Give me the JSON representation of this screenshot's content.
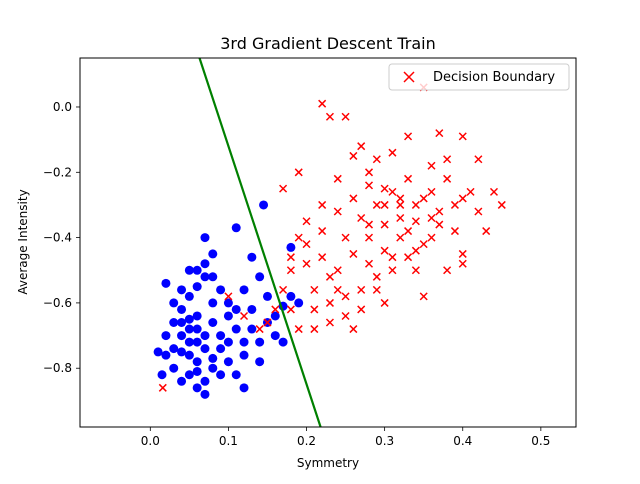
{
  "chart_data": {
    "type": "scatter",
    "title": "3rd Gradient Descent Train",
    "xlabel": "Symmetry",
    "ylabel": "Average Intensity",
    "xlim": [
      -0.09,
      0.545
    ],
    "ylim": [
      -0.98,
      0.15
    ],
    "x_ticks": [
      0.0,
      0.1,
      0.2,
      0.3,
      0.4,
      0.5
    ],
    "x_tick_labels": [
      "0.0",
      "0.1",
      "0.2",
      "0.3",
      "0.4",
      "0.5"
    ],
    "y_ticks": [
      -0.8,
      -0.6,
      -0.4,
      -0.2,
      0.0
    ],
    "y_tick_labels": [
      "−0.8",
      "−0.6",
      "−0.4",
      "−0.2",
      "0.0"
    ],
    "grid": false,
    "legend": {
      "placement": "top-right",
      "entries": [
        {
          "label": "Decision Boundary",
          "marker": "x",
          "color": "#ff0000"
        }
      ]
    },
    "boundary_line": {
      "color": "#008000",
      "points": [
        [
          0.063,
          0.15
        ],
        [
          0.218,
          -0.98
        ]
      ]
    },
    "series": [
      {
        "marker": "circle",
        "color": "#0000ff",
        "points": [
          [
            0.03,
            -0.6
          ],
          [
            0.04,
            -0.62
          ],
          [
            0.05,
            -0.65
          ],
          [
            0.06,
            -0.68
          ],
          [
            0.07,
            -0.7
          ],
          [
            0.05,
            -0.72
          ],
          [
            0.04,
            -0.75
          ],
          [
            0.06,
            -0.78
          ],
          [
            0.08,
            -0.66
          ],
          [
            0.09,
            -0.7
          ],
          [
            0.03,
            -0.8
          ],
          [
            0.02,
            -0.76
          ],
          [
            0.05,
            -0.58
          ],
          [
            0.06,
            -0.55
          ],
          [
            0.07,
            -0.52
          ],
          [
            0.08,
            -0.6
          ],
          [
            0.1,
            -0.64
          ],
          [
            0.11,
            -0.68
          ],
          [
            0.12,
            -0.72
          ],
          [
            0.04,
            -0.84
          ],
          [
            0.06,
            -0.86
          ],
          [
            0.07,
            -0.88
          ],
          [
            0.09,
            -0.82
          ],
          [
            0.1,
            -0.78
          ],
          [
            0.02,
            -0.7
          ],
          [
            0.03,
            -0.66
          ],
          [
            0.05,
            -0.5
          ],
          [
            0.07,
            -0.48
          ],
          [
            0.08,
            -0.45
          ],
          [
            0.11,
            -0.37
          ],
          [
            0.07,
            -0.4
          ],
          [
            0.13,
            -0.46
          ],
          [
            0.14,
            -0.52
          ],
          [
            0.15,
            -0.58
          ],
          [
            0.13,
            -0.62
          ],
          [
            0.15,
            -0.66
          ],
          [
            0.16,
            -0.7
          ],
          [
            0.17,
            -0.72
          ],
          [
            0.12,
            -0.76
          ],
          [
            0.14,
            -0.78
          ],
          [
            0.11,
            -0.82
          ],
          [
            0.12,
            -0.86
          ],
          [
            0.17,
            -0.61
          ],
          [
            0.18,
            -0.58
          ],
          [
            0.19,
            -0.6
          ],
          [
            0.145,
            -0.3
          ],
          [
            0.18,
            -0.43
          ],
          [
            0.02,
            -0.54
          ],
          [
            0.01,
            -0.75
          ],
          [
            0.015,
            -0.82
          ],
          [
            0.04,
            -0.7
          ],
          [
            0.05,
            -0.76
          ],
          [
            0.06,
            -0.64
          ],
          [
            0.07,
            -0.74
          ],
          [
            0.08,
            -0.8
          ],
          [
            0.09,
            -0.74
          ],
          [
            0.04,
            -0.66
          ],
          [
            0.05,
            -0.68
          ],
          [
            0.06,
            -0.72
          ],
          [
            0.03,
            -0.74
          ],
          [
            0.1,
            -0.6
          ],
          [
            0.09,
            -0.56
          ],
          [
            0.08,
            -0.52
          ],
          [
            0.06,
            -0.5
          ],
          [
            0.04,
            -0.56
          ],
          [
            0.12,
            -0.56
          ],
          [
            0.13,
            -0.68
          ],
          [
            0.1,
            -0.72
          ],
          [
            0.14,
            -0.72
          ],
          [
            0.11,
            -0.62
          ],
          [
            0.16,
            -0.64
          ],
          [
            0.05,
            -0.82
          ],
          [
            0.07,
            -0.84
          ],
          [
            0.08,
            -0.77
          ],
          [
            0.06,
            -0.81
          ]
        ]
      },
      {
        "marker": "x",
        "color": "#ff0000",
        "points": [
          [
            0.22,
            0.01
          ],
          [
            0.23,
            -0.03
          ],
          [
            0.25,
            -0.03
          ],
          [
            0.35,
            0.06
          ],
          [
            0.37,
            -0.08
          ],
          [
            0.4,
            -0.09
          ],
          [
            0.33,
            -0.09
          ],
          [
            0.42,
            -0.16
          ],
          [
            0.44,
            -0.26
          ],
          [
            0.45,
            -0.3
          ],
          [
            0.43,
            -0.38
          ],
          [
            0.4,
            -0.45
          ],
          [
            0.38,
            -0.5
          ],
          [
            0.36,
            -0.4
          ],
          [
            0.34,
            -0.35
          ],
          [
            0.32,
            -0.3
          ],
          [
            0.3,
            -0.25
          ],
          [
            0.28,
            -0.2
          ],
          [
            0.26,
            -0.15
          ],
          [
            0.24,
            -0.22
          ],
          [
            0.22,
            -0.3
          ],
          [
            0.2,
            -0.35
          ],
          [
            0.19,
            -0.4
          ],
          [
            0.18,
            -0.5
          ],
          [
            0.17,
            -0.56
          ],
          [
            0.16,
            -0.62
          ],
          [
            0.15,
            -0.66
          ],
          [
            0.14,
            -0.68
          ],
          [
            0.12,
            -0.64
          ],
          [
            0.1,
            -0.58
          ],
          [
            0.21,
            -0.56
          ],
          [
            0.23,
            -0.6
          ],
          [
            0.25,
            -0.58
          ],
          [
            0.27,
            -0.62
          ],
          [
            0.29,
            -0.56
          ],
          [
            0.31,
            -0.5
          ],
          [
            0.33,
            -0.46
          ],
          [
            0.35,
            -0.42
          ],
          [
            0.37,
            -0.36
          ],
          [
            0.39,
            -0.3
          ],
          [
            0.41,
            -0.26
          ],
          [
            0.26,
            -0.45
          ],
          [
            0.28,
            -0.4
          ],
          [
            0.3,
            -0.36
          ],
          [
            0.32,
            -0.4
          ],
          [
            0.34,
            -0.44
          ],
          [
            0.24,
            -0.5
          ],
          [
            0.22,
            -0.46
          ],
          [
            0.2,
            -0.48
          ],
          [
            0.18,
            -0.62
          ],
          [
            0.19,
            -0.68
          ],
          [
            0.21,
            -0.68
          ],
          [
            0.23,
            -0.52
          ],
          [
            0.25,
            -0.4
          ],
          [
            0.27,
            -0.34
          ],
          [
            0.29,
            -0.3
          ],
          [
            0.31,
            -0.26
          ],
          [
            0.33,
            -0.22
          ],
          [
            0.35,
            -0.28
          ],
          [
            0.37,
            -0.32
          ],
          [
            0.39,
            -0.38
          ],
          [
            0.28,
            -0.48
          ],
          [
            0.3,
            -0.44
          ],
          [
            0.32,
            -0.34
          ],
          [
            0.34,
            -0.3
          ],
          [
            0.36,
            -0.26
          ],
          [
            0.38,
            -0.22
          ],
          [
            0.4,
            -0.28
          ],
          [
            0.42,
            -0.32
          ],
          [
            0.26,
            -0.28
          ],
          [
            0.24,
            -0.32
          ],
          [
            0.22,
            -0.38
          ],
          [
            0.2,
            -0.42
          ],
          [
            0.18,
            -0.46
          ],
          [
            0.29,
            -0.52
          ],
          [
            0.31,
            -0.46
          ],
          [
            0.27,
            -0.56
          ],
          [
            0.25,
            -0.64
          ],
          [
            0.23,
            -0.66
          ],
          [
            0.21,
            -0.62
          ],
          [
            0.016,
            -0.86
          ],
          [
            0.17,
            -0.25
          ],
          [
            0.19,
            -0.2
          ],
          [
            0.27,
            -0.12
          ],
          [
            0.29,
            -0.16
          ],
          [
            0.31,
            -0.14
          ],
          [
            0.36,
            -0.18
          ],
          [
            0.38,
            -0.16
          ],
          [
            0.4,
            -0.48
          ],
          [
            0.35,
            -0.58
          ],
          [
            0.3,
            -0.6
          ],
          [
            0.26,
            -0.68
          ],
          [
            0.24,
            -0.56
          ],
          [
            0.28,
            -0.36
          ],
          [
            0.33,
            -0.38
          ],
          [
            0.36,
            -0.34
          ],
          [
            0.34,
            -0.5
          ],
          [
            0.3,
            -0.3
          ],
          [
            0.32,
            -0.28
          ],
          [
            0.28,
            -0.24
          ]
        ]
      }
    ]
  }
}
